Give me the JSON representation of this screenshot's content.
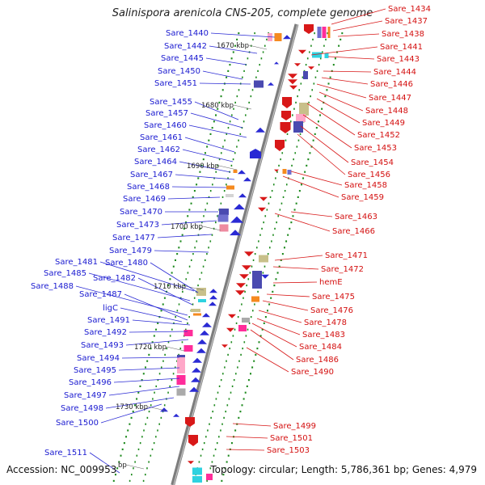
{
  "title": "Salinispora arenicola CNS-205, complete genome",
  "footer": {
    "accession": "Accession: NC_009953",
    "topology": "Topology: circular; Length: 5,786,361 bp; Genes: 4,979"
  },
  "colors": {
    "left_gene": "#2a2ad4",
    "right_gene": "#d81818",
    "left_label": "#1a1ad0",
    "right_label": "#d41010",
    "backbone": "#8a8a8a",
    "tick_green": "#1e8a1e",
    "cog_palette": [
      "#f58a1f",
      "#6f6fcf",
      "#2ed2e0",
      "#ff2d9a",
      "#c8c08a",
      "#9a6bd0",
      "#ee8aa0",
      "#aaaaaa",
      "#d4d4d4",
      "#4a4ab0",
      "#ffa7c8"
    ]
  },
  "scale_labels": [
    "1670 kbp",
    "1680 kbp",
    "1690 kbp",
    "1700 kbp",
    "1710 kbp",
    "1720 kbp",
    "1730 kbp",
    "bp"
  ],
  "left_genes": [
    "Sare_1440",
    "Sare_1442",
    "Sare_1445",
    "Sare_1450",
    "Sare_1451",
    "Sare_1455",
    "Sare_1457",
    "Sare_1460",
    "Sare_1461",
    "Sare_1462",
    "Sare_1464",
    "Sare_1467",
    "Sare_1468",
    "Sare_1469",
    "Sare_1470",
    "Sare_1473",
    "Sare_1477",
    "Sare_1479",
    "Sare_1481",
    "Sare_1480",
    "Sare_1485",
    "Sare_1482",
    "Sare_1488",
    "Sare_1487",
    "ligC",
    "Sare_1491",
    "Sare_1492",
    "Sare_1493",
    "Sare_1494",
    "Sare_1495",
    "Sare_1496",
    "Sare_1497",
    "Sare_1498",
    "Sare_1500",
    "Sare_1511"
  ],
  "right_genes": [
    "Sare_1434",
    "Sare_1437",
    "Sare_1438",
    "Sare_1441",
    "Sare_1443",
    "Sare_1444",
    "Sare_1446",
    "Sare_1447",
    "Sare_1448",
    "Sare_1449",
    "Sare_1452",
    "Sare_1453",
    "Sare_1454",
    "Sare_1456",
    "Sare_1458",
    "Sare_1459",
    "Sare_1463",
    "Sare_1466",
    "Sare_1471",
    "Sare_1472",
    "hemE",
    "Sare_1475",
    "Sare_1476",
    "Sare_1478",
    "Sare_1483",
    "Sare_1484",
    "Sare_1486",
    "Sare_1490",
    "Sare_1499",
    "Sare_1501",
    "Sare_1503"
  ]
}
